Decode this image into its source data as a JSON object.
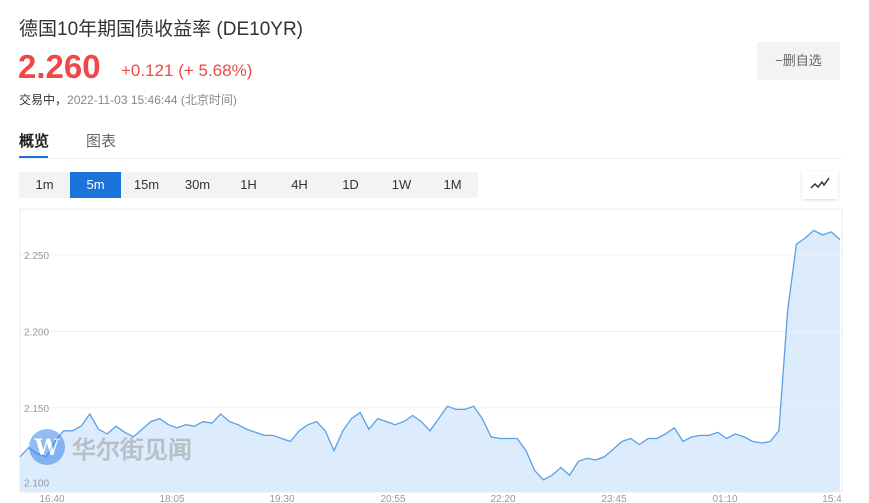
{
  "header": {
    "title": "德国10年期国债收益率 (DE10YR)",
    "price": "2.260",
    "change": "+0.121 (+ 5.68%)",
    "status_label": "交易中，",
    "timestamp": "2022-11-03 15:46:44 (北京时间)",
    "remove_watchlist": "−删自选"
  },
  "tabs": [
    {
      "label": "概览",
      "active": true
    },
    {
      "label": "图表",
      "active": false
    }
  ],
  "intervals": [
    {
      "label": "1m"
    },
    {
      "label": "5m",
      "active": true
    },
    {
      "label": "15m"
    },
    {
      "label": "30m"
    },
    {
      "label": "1H"
    },
    {
      "label": "4H"
    },
    {
      "label": "1D"
    },
    {
      "label": "1W"
    },
    {
      "label": "1M"
    }
  ],
  "chart_type_icon": "line-chart-icon",
  "watermark": "华尔街见闻",
  "colors": {
    "up": "#f04848",
    "accent": "#1a73d9",
    "line": "#5aa0e8",
    "fill": "#dcecfc"
  },
  "chart_data": {
    "type": "area",
    "ylim": [
      2.095,
      2.28
    ],
    "yticks": [
      "2.100",
      "2.150",
      "2.200",
      "2.250"
    ],
    "xticks": [
      "16:40",
      "18:05",
      "19:30",
      "20:55",
      "22:20",
      "23:45",
      "01:10",
      "15:4"
    ],
    "grid": true,
    "values": [
      2.118,
      2.124,
      2.12,
      2.118,
      2.128,
      2.135,
      2.135,
      2.138,
      2.146,
      2.136,
      2.133,
      2.138,
      2.134,
      2.131,
      2.136,
      2.141,
      2.143,
      2.139,
      2.137,
      2.139,
      2.138,
      2.141,
      2.14,
      2.146,
      2.141,
      2.139,
      2.136,
      2.134,
      2.132,
      2.132,
      2.13,
      2.128,
      2.135,
      2.139,
      2.141,
      2.135,
      2.122,
      2.135,
      2.143,
      2.147,
      2.136,
      2.143,
      2.141,
      2.139,
      2.141,
      2.145,
      2.141,
      2.135,
      2.143,
      2.151,
      2.149,
      2.149,
      2.151,
      2.143,
      2.131,
      2.13,
      2.13,
      2.13,
      2.122,
      2.109,
      2.103,
      2.106,
      2.111,
      2.106,
      2.115,
      2.117,
      2.116,
      2.118,
      2.123,
      2.128,
      2.13,
      2.126,
      2.13,
      2.13,
      2.133,
      2.137,
      2.128,
      2.131,
      2.132,
      2.132,
      2.134,
      2.13,
      2.133,
      2.131,
      2.128,
      2.127,
      2.128,
      2.135,
      2.214,
      2.257,
      2.261,
      2.266,
      2.263,
      2.265,
      2.26
    ]
  }
}
